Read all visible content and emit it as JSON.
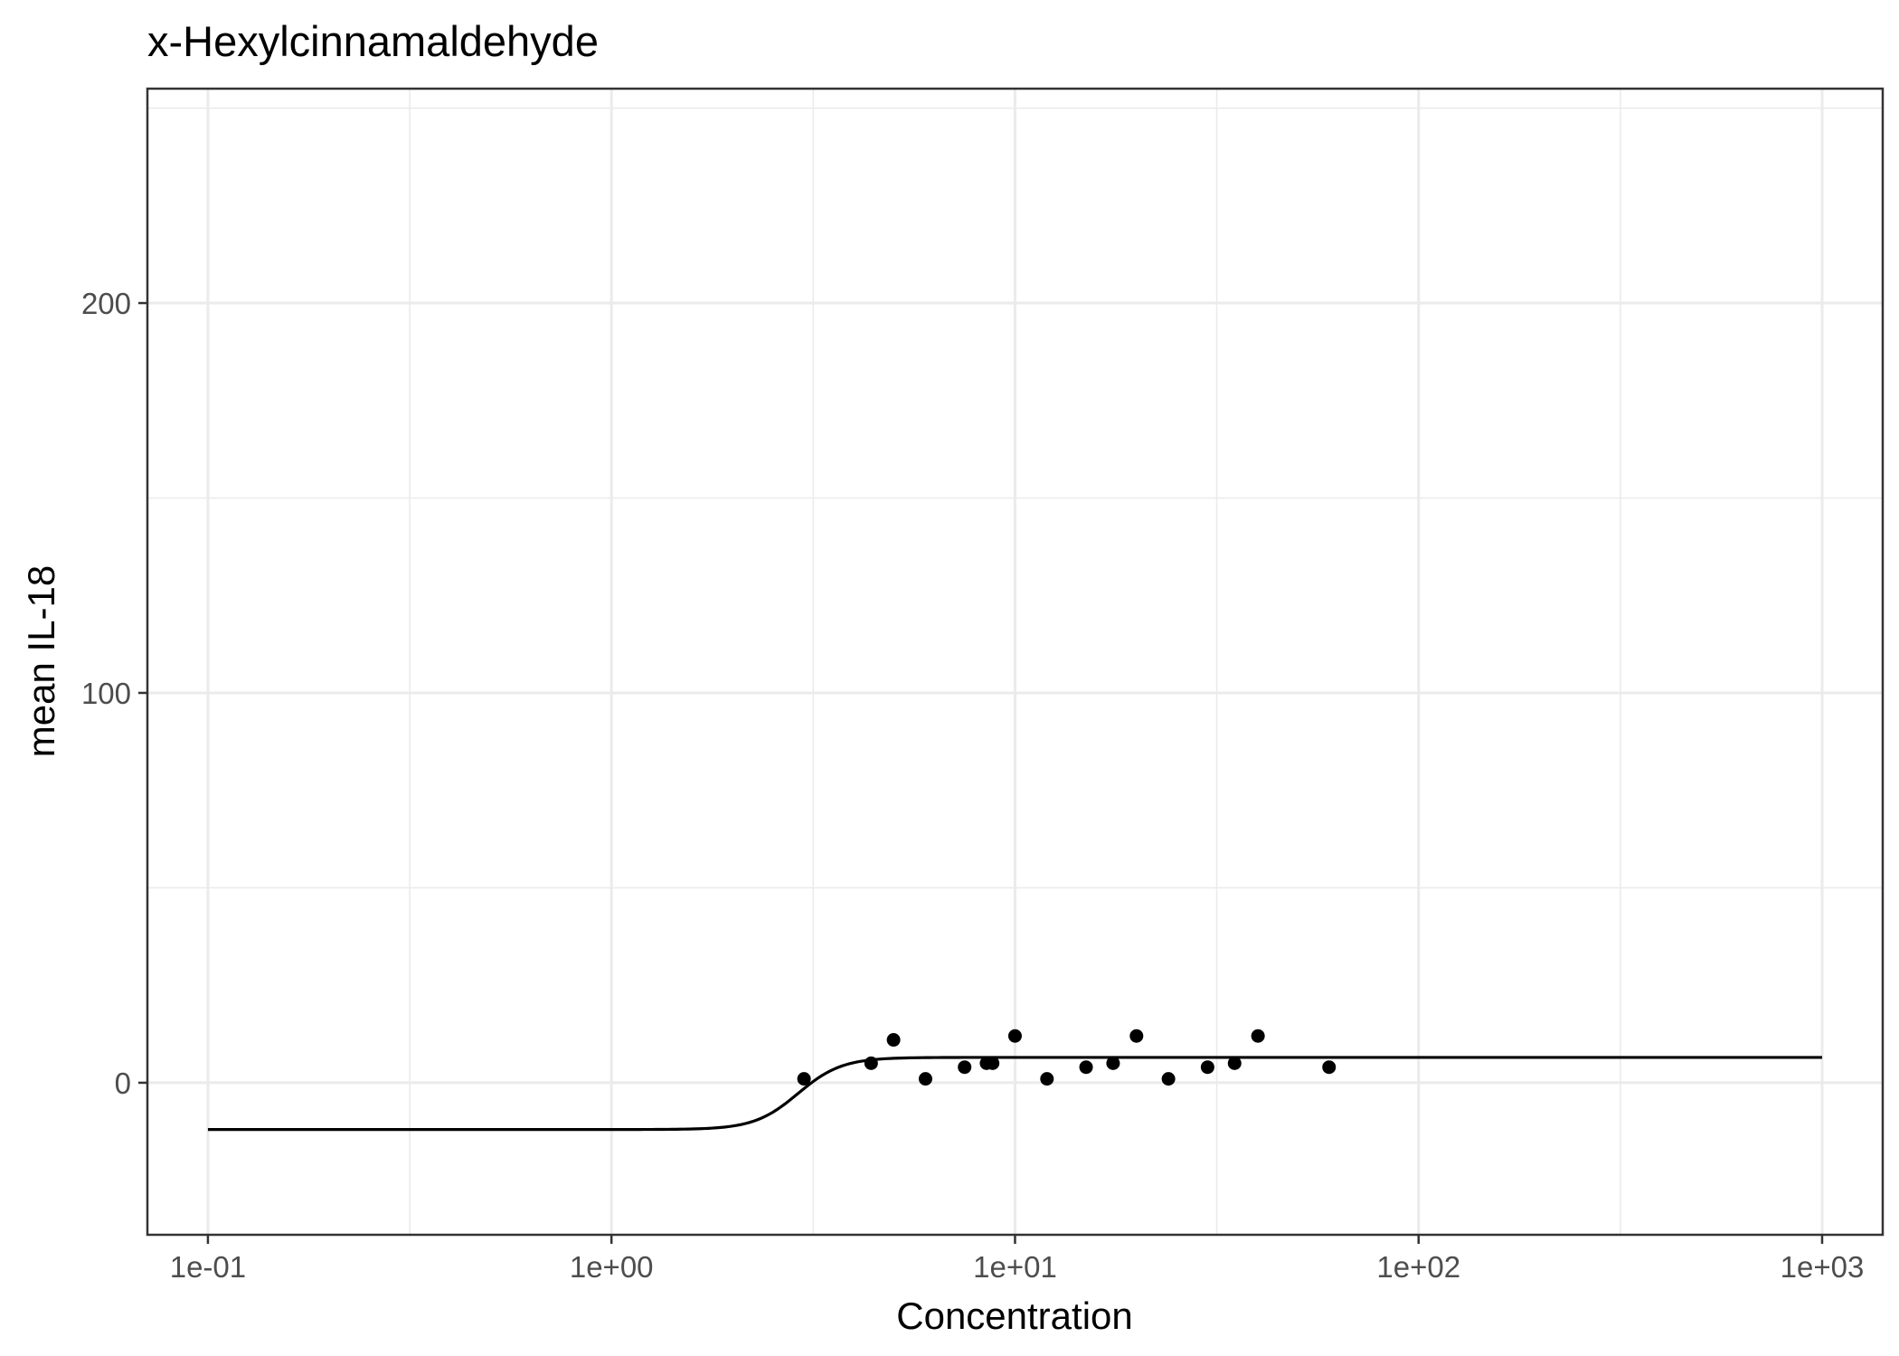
{
  "chart_data": {
    "type": "scatter",
    "title": "x-Hexylcinnamaldehyde",
    "xlabel": "Concentration",
    "ylabel": "mean IL-18",
    "x_scale": "log10",
    "xlim": [
      0.0708,
      1413
    ],
    "ylim": [
      -39,
      255
    ],
    "x_ticks": [
      0.1,
      1,
      10,
      100,
      1000
    ],
    "x_tick_labels": [
      "1e-01",
      "1e+00",
      "1e+01",
      "1e+02",
      "1e+03"
    ],
    "y_ticks": [
      0,
      100,
      200
    ],
    "y_tick_labels": [
      "0",
      "100",
      "200"
    ],
    "grid": true,
    "points": [
      {
        "x": 3.0,
        "y": 1
      },
      {
        "x": 4.4,
        "y": 5
      },
      {
        "x": 5.0,
        "y": 11
      },
      {
        "x": 6.0,
        "y": 1
      },
      {
        "x": 7.5,
        "y": 4
      },
      {
        "x": 8.5,
        "y": 5
      },
      {
        "x": 8.8,
        "y": 5
      },
      {
        "x": 10.0,
        "y": 12
      },
      {
        "x": 12.0,
        "y": 1
      },
      {
        "x": 15.0,
        "y": 4
      },
      {
        "x": 17.5,
        "y": 5
      },
      {
        "x": 20.0,
        "y": 12
      },
      {
        "x": 24.0,
        "y": 1
      },
      {
        "x": 30.0,
        "y": 4
      },
      {
        "x": 35.0,
        "y": 5
      },
      {
        "x": 40.0,
        "y": 12
      },
      {
        "x": 60.0,
        "y": 4
      }
    ],
    "fit_curve": {
      "model": "logistic",
      "bottom": -12,
      "top": 6.5,
      "ec50": 2.9,
      "hill": 8,
      "x_range": [
        0.1,
        1000
      ]
    }
  }
}
